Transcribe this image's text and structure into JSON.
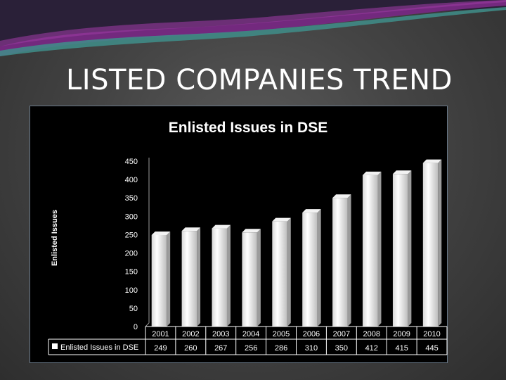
{
  "slide": {
    "title": "LISTED COMPANIES TREND"
  },
  "chart_data": {
    "type": "bar",
    "title": "Enlisted Issues in DSE",
    "xlabel": "",
    "ylabel": "Enlisted Issues",
    "categories": [
      "2001",
      "2002",
      "2003",
      "2004",
      "2005",
      "2006",
      "2007",
      "2008",
      "2009",
      "2010"
    ],
    "series": [
      {
        "name": "Enlisted Issues in DSE",
        "values": [
          249,
          260,
          267,
          256,
          286,
          310,
          350,
          412,
          415,
          445
        ]
      }
    ],
    "ylim": [
      0,
      450
    ],
    "yticks": [
      0,
      50,
      100,
      150,
      200,
      250,
      300,
      350,
      400,
      450
    ],
    "grid": false,
    "legend": "data-table",
    "data_table": true,
    "colors": {
      "background": "#000000",
      "bar": "#ffffff",
      "text": "#ffffff"
    }
  }
}
